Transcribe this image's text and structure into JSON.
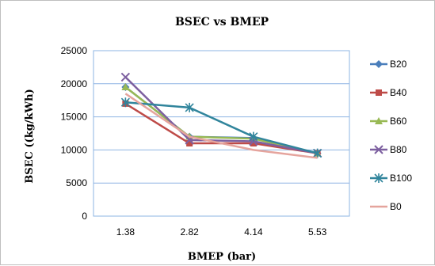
{
  "chart_data": {
    "type": "line",
    "title": "BSEC vs BMEP",
    "xlabel": "BMEP (bar)",
    "ylabel": "BSEC ((kg/kWh)",
    "categories": [
      "1.38",
      "2.82",
      "4.14",
      "5.53"
    ],
    "ylim": [
      0,
      25000
    ],
    "yticks": [
      0,
      5000,
      10000,
      15000,
      20000,
      25000
    ],
    "ytick_labels": [
      "0",
      "5000",
      "10000",
      "15000",
      "20000",
      "25000"
    ],
    "grid": "horizontal",
    "legend_position": "right",
    "series": [
      {
        "name": "B20",
        "color": "#4a7ebb",
        "marker": "diamond",
        "values": [
          19500,
          12000,
          11800,
          9500
        ]
      },
      {
        "name": "B40",
        "color": "#be4b48",
        "marker": "square",
        "values": [
          17000,
          11000,
          11000,
          9500
        ]
      },
      {
        "name": "B60",
        "color": "#98b954",
        "marker": "triangle",
        "values": [
          19500,
          12000,
          11700,
          9500
        ]
      },
      {
        "name": "B80",
        "color": "#7d60a0",
        "marker": "x",
        "values": [
          21000,
          11500,
          11300,
          9500
        ]
      },
      {
        "name": "B100",
        "color": "#31859c",
        "marker": "star",
        "values": [
          17200,
          16400,
          12000,
          9500
        ]
      },
      {
        "name": "B0",
        "color": "#e5a49d",
        "marker": "none",
        "values": [
          18500,
          12000,
          10000,
          8800
        ]
      }
    ]
  }
}
